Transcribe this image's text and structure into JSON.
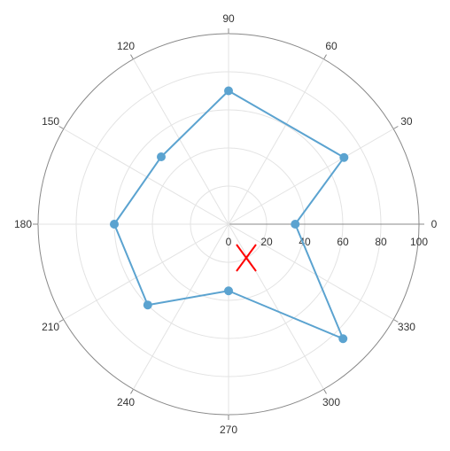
{
  "chart_data": {
    "type": "polar-line",
    "title": "",
    "angular_axis": {
      "unit": "degrees",
      "direction": "counterclockwise",
      "zero_at": "right",
      "ticks": [
        0,
        30,
        60,
        90,
        120,
        150,
        180,
        210,
        240,
        270,
        300,
        330
      ]
    },
    "radial_axis": {
      "range": [
        0,
        100
      ],
      "ticks": [
        0,
        20,
        40,
        60,
        80,
        100
      ],
      "label_angle_deg": 0
    },
    "grid": true,
    "series": [
      {
        "theta": [
          0,
          30,
          90,
          135,
          180,
          225,
          270,
          315,
          0
        ],
        "r": [
          35,
          70,
          70,
          50,
          60,
          60,
          35,
          85,
          35
        ],
        "color": "#5ba3d0",
        "marker": "circle"
      }
    ],
    "annotations": [
      {
        "type": "x-marker",
        "color": "#ff0000"
      }
    ]
  }
}
